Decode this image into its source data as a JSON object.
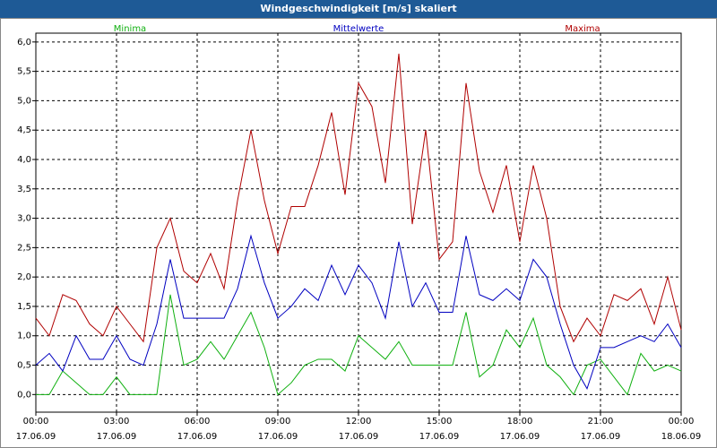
{
  "chart_data": {
    "type": "line",
    "title": "Windgeschwindigkeit [m/s] skaliert",
    "x": [
      0,
      0.5,
      1,
      1.5,
      2,
      2.5,
      3,
      3.5,
      4,
      4.5,
      5,
      5.5,
      6,
      6.5,
      7,
      7.5,
      8,
      8.5,
      9,
      9.5,
      10,
      10.5,
      11,
      11.5,
      12,
      12.5,
      13,
      13.5,
      14,
      14.5,
      15,
      15.5,
      16,
      16.5,
      17,
      17.5,
      18,
      18.5,
      19,
      19.5,
      20,
      20.5,
      21,
      21.5,
      22,
      22.5,
      23,
      23.5,
      24
    ],
    "series": [
      {
        "name": "Minima",
        "color": "#10b010",
        "values": [
          0.0,
          0.0,
          0.4,
          0.2,
          0.0,
          0.0,
          0.3,
          0.0,
          0.0,
          0.0,
          1.7,
          0.5,
          0.6,
          0.9,
          0.6,
          1.0,
          1.4,
          0.8,
          0.0,
          0.2,
          0.5,
          0.6,
          0.6,
          0.4,
          1.0,
          0.8,
          0.6,
          0.9,
          0.5,
          0.5,
          0.5,
          0.5,
          1.4,
          0.3,
          0.5,
          1.1,
          0.8,
          1.3,
          0.5,
          0.3,
          0.0,
          0.5,
          0.6,
          0.3,
          0.0,
          0.7,
          0.4,
          0.5,
          0.4
        ]
      },
      {
        "name": "Mittelwerte",
        "color": "#0000c0",
        "values": [
          0.5,
          0.7,
          0.4,
          1.0,
          0.6,
          0.6,
          1.0,
          0.6,
          0.5,
          1.2,
          2.3,
          1.3,
          1.3,
          1.3,
          1.3,
          1.8,
          2.7,
          1.9,
          1.3,
          1.5,
          1.8,
          1.6,
          2.2,
          1.7,
          2.2,
          1.9,
          1.3,
          2.6,
          1.5,
          1.9,
          1.4,
          1.4,
          2.7,
          1.7,
          1.6,
          1.8,
          1.6,
          2.3,
          2.0,
          1.2,
          0.5,
          0.1,
          0.8,
          0.8,
          0.9,
          1.0,
          0.9,
          1.2,
          0.8
        ]
      },
      {
        "name": "Maxima",
        "color": "#b00000",
        "values": [
          1.3,
          1.0,
          1.7,
          1.6,
          1.2,
          1.0,
          1.5,
          1.2,
          0.9,
          2.5,
          3.0,
          2.1,
          1.9,
          2.4,
          1.8,
          3.3,
          4.5,
          3.3,
          2.4,
          3.2,
          3.2,
          3.9,
          4.8,
          3.4,
          5.3,
          4.9,
          3.6,
          5.8,
          2.9,
          4.5,
          2.3,
          2.6,
          5.3,
          3.8,
          3.1,
          3.9,
          2.6,
          3.9,
          3.0,
          1.5,
          0.9,
          1.3,
          1.0,
          1.7,
          1.6,
          1.8,
          1.2,
          2.0,
          1.1
        ]
      }
    ],
    "xlim": [
      0,
      24
    ],
    "xticks": [
      {
        "value": 0,
        "label": "00:00\n17.06.09"
      },
      {
        "value": 3,
        "label": "03:00\n17.06.09"
      },
      {
        "value": 6,
        "label": "06:00\n17.06.09"
      },
      {
        "value": 9,
        "label": "09:00\n17.06.09"
      },
      {
        "value": 12,
        "label": "12:00\n17.06.09"
      },
      {
        "value": 15,
        "label": "15:00\n17.06.09"
      },
      {
        "value": 18,
        "label": "18:00\n17.06.09"
      },
      {
        "value": 21,
        "label": "21:00\n17.06.09"
      },
      {
        "value": 24,
        "label": "00:00\n18.06.09"
      }
    ],
    "ylim": [
      -0.3,
      6.15
    ],
    "yticks": [
      {
        "value": 0,
        "label": "0,0"
      },
      {
        "value": 0.5,
        "label": "0,5"
      },
      {
        "value": 1,
        "label": "1,0"
      },
      {
        "value": 1.5,
        "label": "1,5"
      },
      {
        "value": 2,
        "label": "2,0"
      },
      {
        "value": 2.5,
        "label": "2,5"
      },
      {
        "value": 3,
        "label": "3,0"
      },
      {
        "value": 3.5,
        "label": "3,5"
      },
      {
        "value": 4,
        "label": "4,0"
      },
      {
        "value": 4.5,
        "label": "4,5"
      },
      {
        "value": 5,
        "label": "5,0"
      },
      {
        "value": 5.5,
        "label": "5,5"
      },
      {
        "value": 6,
        "label": "6,0"
      }
    ],
    "grid": true
  }
}
